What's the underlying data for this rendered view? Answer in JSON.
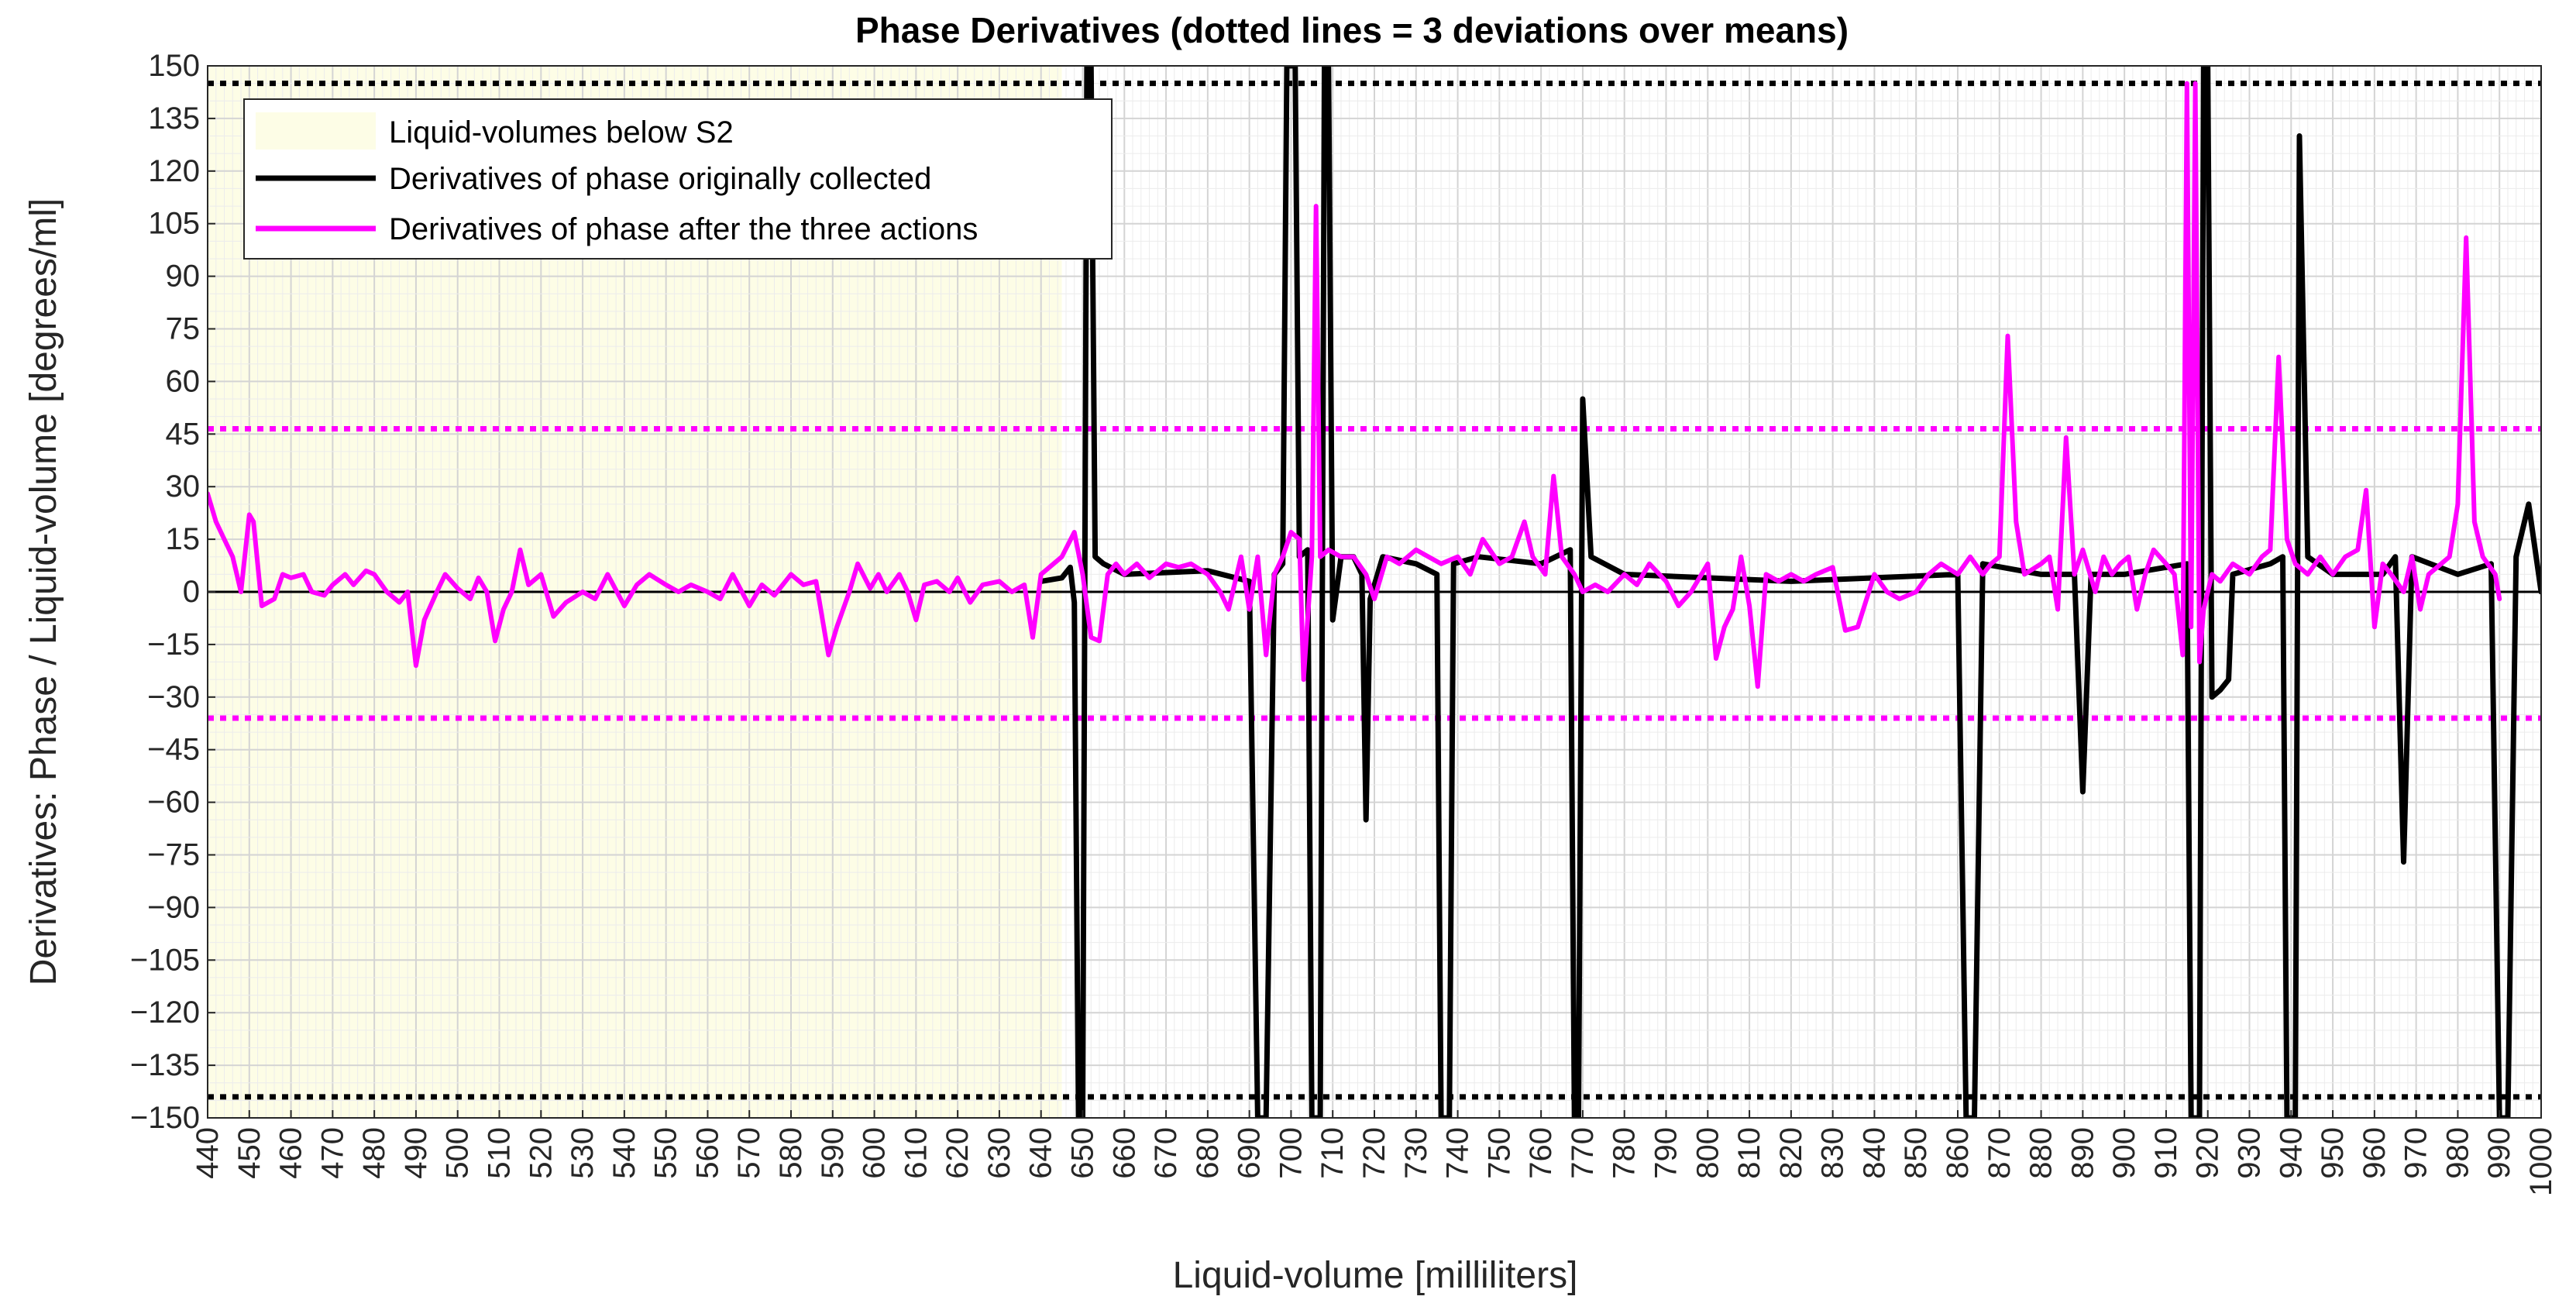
{
  "chart_data": {
    "type": "line",
    "title": "Phase Derivatives (dotted lines = 3 deviations over means)",
    "xlabel": "Liquid-volume [milliliters]",
    "ylabel": "Derivatives: Phase / Liquid-volume [degrees/ml]",
    "xlim": [
      440,
      1000
    ],
    "ylim": [
      -150,
      150
    ],
    "xticks": [
      440,
      450,
      460,
      470,
      480,
      490,
      500,
      510,
      520,
      530,
      540,
      550,
      560,
      570,
      580,
      590,
      600,
      610,
      620,
      630,
      640,
      650,
      660,
      670,
      680,
      690,
      700,
      710,
      720,
      730,
      740,
      750,
      760,
      770,
      780,
      790,
      800,
      810,
      820,
      830,
      840,
      850,
      860,
      870,
      880,
      890,
      900,
      910,
      920,
      930,
      940,
      950,
      960,
      970,
      980,
      990,
      1000
    ],
    "yticks": [
      150,
      135,
      120,
      105,
      90,
      75,
      60,
      45,
      30,
      15,
      0,
      -15,
      -30,
      -45,
      -60,
      -75,
      -90,
      -105,
      -120,
      -135,
      -150
    ],
    "grid": true,
    "legend_position": "top-left",
    "shaded_region": {
      "label": "Liquid-volumes below S2",
      "x_range": [
        440,
        645
      ],
      "color": "#fdfde6"
    },
    "zero_line": 0,
    "threshold_lines": [
      {
        "series": "black",
        "color": "#000000",
        "values": [
          145,
          -144
        ]
      },
      {
        "series": "magenta",
        "color": "#ff00ff",
        "values": [
          46.5,
          -36
        ]
      }
    ],
    "series": [
      {
        "name": "Derivatives of phase originally collected",
        "color": "#000000",
        "points": [
          [
            640,
            3
          ],
          [
            645,
            4
          ],
          [
            647,
            7
          ],
          [
            648,
            -3
          ],
          [
            649,
            -150
          ],
          [
            650,
            -150
          ],
          [
            651,
            150
          ],
          [
            652,
            150
          ],
          [
            653,
            10
          ],
          [
            655,
            8
          ],
          [
            660,
            5
          ],
          [
            680,
            6
          ],
          [
            690,
            3
          ],
          [
            692,
            -150
          ],
          [
            694,
            -150
          ],
          [
            696,
            5
          ],
          [
            698,
            8
          ],
          [
            699,
            150
          ],
          [
            701,
            150
          ],
          [
            702,
            10
          ],
          [
            704,
            12
          ],
          [
            705,
            -150
          ],
          [
            707,
            -150
          ],
          [
            708,
            150
          ],
          [
            709,
            150
          ],
          [
            710,
            -8
          ],
          [
            712,
            10
          ],
          [
            715,
            10
          ],
          [
            717,
            5
          ],
          [
            718,
            -65
          ],
          [
            719,
            -2
          ],
          [
            722,
            10
          ],
          [
            730,
            8
          ],
          [
            735,
            5
          ],
          [
            736,
            -150
          ],
          [
            738,
            -150
          ],
          [
            739,
            8
          ],
          [
            745,
            10
          ],
          [
            760,
            8
          ],
          [
            767,
            12
          ],
          [
            768,
            -150
          ],
          [
            769,
            -150
          ],
          [
            770,
            55
          ],
          [
            772,
            10
          ],
          [
            780,
            5
          ],
          [
            820,
            3
          ],
          [
            860,
            5
          ],
          [
            862,
            -150
          ],
          [
            864,
            -150
          ],
          [
            866,
            8
          ],
          [
            880,
            5
          ],
          [
            888,
            5
          ],
          [
            890,
            -57
          ],
          [
            892,
            5
          ],
          [
            900,
            5
          ],
          [
            915,
            8
          ],
          [
            916,
            -150
          ],
          [
            918,
            -150
          ],
          [
            919,
            150
          ],
          [
            920,
            150
          ],
          [
            921,
            -30
          ],
          [
            923,
            -28
          ],
          [
            925,
            -25
          ],
          [
            926,
            5
          ],
          [
            935,
            8
          ],
          [
            938,
            10
          ],
          [
            939,
            -150
          ],
          [
            941,
            -150
          ],
          [
            942,
            130
          ],
          [
            944,
            10
          ],
          [
            950,
            5
          ],
          [
            962,
            5
          ],
          [
            965,
            10
          ],
          [
            967,
            -77
          ],
          [
            969,
            10
          ],
          [
            980,
            5
          ],
          [
            988,
            8
          ],
          [
            990,
            -150
          ],
          [
            992,
            -150
          ],
          [
            994,
            10
          ],
          [
            997,
            25
          ],
          [
            1000,
            0
          ]
        ]
      },
      {
        "name": "Derivatives of phase after the three actions",
        "color": "#ff00ff",
        "points": [
          [
            440,
            28
          ],
          [
            442,
            20
          ],
          [
            444,
            15
          ],
          [
            446,
            10
          ],
          [
            448,
            0
          ],
          [
            450,
            22
          ],
          [
            451,
            20
          ],
          [
            453,
            -4
          ],
          [
            456,
            -2
          ],
          [
            458,
            5
          ],
          [
            460,
            4
          ],
          [
            463,
            5
          ],
          [
            465,
            0
          ],
          [
            468,
            -1
          ],
          [
            470,
            2
          ],
          [
            473,
            5
          ],
          [
            475,
            2
          ],
          [
            478,
            6
          ],
          [
            480,
            5
          ],
          [
            483,
            0
          ],
          [
            486,
            -3
          ],
          [
            488,
            0
          ],
          [
            490,
            -21
          ],
          [
            492,
            -8
          ],
          [
            495,
            0
          ],
          [
            497,
            5
          ],
          [
            500,
            1
          ],
          [
            503,
            -2
          ],
          [
            505,
            4
          ],
          [
            507,
            0
          ],
          [
            509,
            -14
          ],
          [
            511,
            -5
          ],
          [
            513,
            0
          ],
          [
            515,
            12
          ],
          [
            517,
            2
          ],
          [
            520,
            5
          ],
          [
            523,
            -7
          ],
          [
            526,
            -3
          ],
          [
            530,
            0
          ],
          [
            533,
            -2
          ],
          [
            536,
            5
          ],
          [
            540,
            -4
          ],
          [
            543,
            2
          ],
          [
            546,
            5
          ],
          [
            550,
            2
          ],
          [
            553,
            0
          ],
          [
            556,
            2
          ],
          [
            560,
            0
          ],
          [
            563,
            -2
          ],
          [
            566,
            5
          ],
          [
            570,
            -4
          ],
          [
            573,
            2
          ],
          [
            576,
            -1
          ],
          [
            580,
            5
          ],
          [
            583,
            2
          ],
          [
            586,
            3
          ],
          [
            589,
            -18
          ],
          [
            591,
            -10
          ],
          [
            594,
            0
          ],
          [
            596,
            8
          ],
          [
            599,
            1
          ],
          [
            601,
            5
          ],
          [
            603,
            0
          ],
          [
            606,
            5
          ],
          [
            608,
            0
          ],
          [
            610,
            -8
          ],
          [
            612,
            2
          ],
          [
            615,
            3
          ],
          [
            618,
            0
          ],
          [
            620,
            4
          ],
          [
            623,
            -3
          ],
          [
            626,
            2
          ],
          [
            630,
            3
          ],
          [
            633,
            0
          ],
          [
            636,
            2
          ],
          [
            638,
            -13
          ],
          [
            640,
            5
          ],
          [
            643,
            8
          ],
          [
            645,
            10
          ],
          [
            648,
            17
          ],
          [
            650,
            5
          ],
          [
            652,
            -13
          ],
          [
            654,
            -14
          ],
          [
            656,
            5
          ],
          [
            658,
            8
          ],
          [
            660,
            5
          ],
          [
            663,
            8
          ],
          [
            666,
            4
          ],
          [
            670,
            8
          ],
          [
            673,
            7
          ],
          [
            676,
            8
          ],
          [
            680,
            5
          ],
          [
            683,
            0
          ],
          [
            685,
            -5
          ],
          [
            688,
            10
          ],
          [
            690,
            -5
          ],
          [
            692,
            10
          ],
          [
            694,
            -18
          ],
          [
            696,
            5
          ],
          [
            698,
            10
          ],
          [
            700,
            17
          ],
          [
            702,
            15
          ],
          [
            703,
            -25
          ],
          [
            705,
            10
          ],
          [
            706,
            110
          ],
          [
            707,
            10
          ],
          [
            709,
            12
          ],
          [
            712,
            10
          ],
          [
            715,
            10
          ],
          [
            718,
            5
          ],
          [
            720,
            -2
          ],
          [
            723,
            10
          ],
          [
            726,
            8
          ],
          [
            730,
            12
          ],
          [
            733,
            10
          ],
          [
            736,
            8
          ],
          [
            740,
            10
          ],
          [
            743,
            5
          ],
          [
            746,
            15
          ],
          [
            750,
            8
          ],
          [
            753,
            10
          ],
          [
            756,
            20
          ],
          [
            758,
            10
          ],
          [
            761,
            5
          ],
          [
            763,
            33
          ],
          [
            765,
            10
          ],
          [
            768,
            5
          ],
          [
            770,
            0
          ],
          [
            773,
            2
          ],
          [
            776,
            0
          ],
          [
            780,
            5
          ],
          [
            783,
            2
          ],
          [
            786,
            8
          ],
          [
            790,
            3
          ],
          [
            793,
            -4
          ],
          [
            796,
            0
          ],
          [
            800,
            8
          ],
          [
            802,
            -19
          ],
          [
            804,
            -10
          ],
          [
            806,
            -5
          ],
          [
            808,
            10
          ],
          [
            810,
            -4
          ],
          [
            812,
            -27
          ],
          [
            814,
            5
          ],
          [
            817,
            3
          ],
          [
            820,
            5
          ],
          [
            823,
            3
          ],
          [
            826,
            5
          ],
          [
            830,
            7
          ],
          [
            833,
            -11
          ],
          [
            836,
            -10
          ],
          [
            840,
            5
          ],
          [
            843,
            0
          ],
          [
            846,
            -2
          ],
          [
            850,
            0
          ],
          [
            853,
            5
          ],
          [
            856,
            8
          ],
          [
            860,
            5
          ],
          [
            863,
            10
          ],
          [
            866,
            5
          ],
          [
            868,
            8
          ],
          [
            870,
            10
          ],
          [
            872,
            73
          ],
          [
            874,
            20
          ],
          [
            876,
            5
          ],
          [
            880,
            8
          ],
          [
            882,
            10
          ],
          [
            884,
            -5
          ],
          [
            886,
            44
          ],
          [
            888,
            5
          ],
          [
            890,
            12
          ],
          [
            893,
            0
          ],
          [
            895,
            10
          ],
          [
            897,
            5
          ],
          [
            899,
            8
          ],
          [
            901,
            10
          ],
          [
            903,
            -5
          ],
          [
            905,
            5
          ],
          [
            907,
            12
          ],
          [
            910,
            8
          ],
          [
            912,
            5
          ],
          [
            914,
            -18
          ],
          [
            915,
            145
          ],
          [
            916,
            -10
          ],
          [
            917,
            145
          ],
          [
            918,
            -20
          ],
          [
            919,
            -5
          ],
          [
            921,
            5
          ],
          [
            923,
            3
          ],
          [
            926,
            8
          ],
          [
            930,
            5
          ],
          [
            933,
            10
          ],
          [
            935,
            12
          ],
          [
            937,
            67
          ],
          [
            939,
            15
          ],
          [
            941,
            8
          ],
          [
            944,
            5
          ],
          [
            947,
            10
          ],
          [
            950,
            5
          ],
          [
            953,
            10
          ],
          [
            956,
            12
          ],
          [
            958,
            29
          ],
          [
            960,
            -10
          ],
          [
            962,
            8
          ],
          [
            964,
            5
          ],
          [
            967,
            0
          ],
          [
            969,
            10
          ],
          [
            971,
            -5
          ],
          [
            973,
            5
          ],
          [
            976,
            8
          ],
          [
            978,
            10
          ],
          [
            980,
            25
          ],
          [
            982,
            101
          ],
          [
            984,
            20
          ],
          [
            986,
            10
          ],
          [
            989,
            5
          ],
          [
            990,
            -2
          ]
        ]
      }
    ]
  }
}
